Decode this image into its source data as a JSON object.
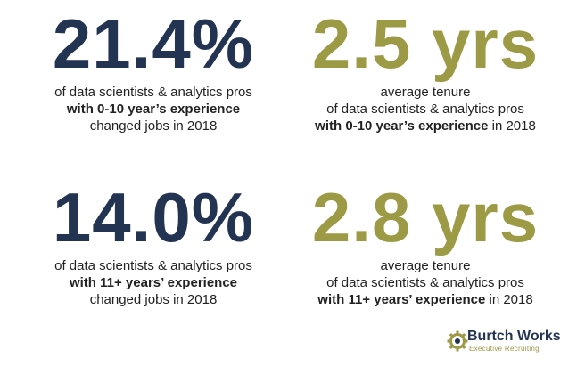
{
  "colors": {
    "navy": "#233352",
    "olive": "#9c9a45",
    "text": "#222222"
  },
  "stats": [
    {
      "value": "21.4%",
      "color": "navy",
      "line1": "of data scientists & analytics pros",
      "line2_bold": "with 0-10 year’s experience",
      "line3": "changed jobs in 2018"
    },
    {
      "value": "2.5 yrs",
      "color": "olive",
      "line1": "average tenure",
      "line2": "of data scientists & analytics pros",
      "line3_bold": "with 0-10 year’s experience",
      "line3_rest": " in 2018"
    },
    {
      "value": "14.0%",
      "color": "navy",
      "line1": "of data scientists & analytics pros",
      "line2_bold": "with 11+ years’ experience",
      "line3": "changed jobs in 2018"
    },
    {
      "value": "2.8 yrs",
      "color": "olive",
      "line1": "average tenure",
      "line2": "of data scientists & analytics pros",
      "line3_bold": "with 11+ years’ experience",
      "line3_rest": " in 2018"
    }
  ],
  "logo": {
    "name": "Burtch Works",
    "tagline": "Executive Recruiting",
    "icon": "gear-icon"
  }
}
